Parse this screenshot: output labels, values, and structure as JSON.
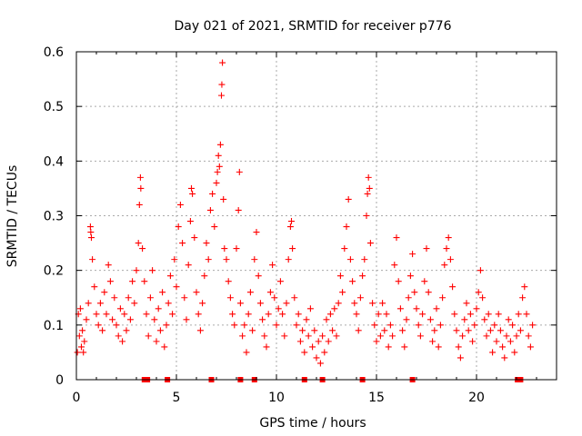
{
  "chart_data": {
    "type": "scatter",
    "title": "Day 021 of 2021, SRMTID for receiver p776",
    "xlabel": "GPS time / hours",
    "ylabel": "SRMTID / TECUs",
    "xlim": [
      0,
      24
    ],
    "ylim": [
      0,
      0.6
    ],
    "x_ticks": [
      0,
      5,
      10,
      15,
      20
    ],
    "x_tick_labels": [
      "0",
      "5",
      "10",
      "15",
      "20"
    ],
    "y_ticks": [
      0,
      0.1,
      0.2,
      0.3,
      0.4,
      0.5,
      0.6
    ],
    "y_tick_labels": [
      "0",
      "0.1",
      "0.2",
      "0.3",
      "0.4",
      "0.5",
      "0.6"
    ],
    "grid": true,
    "marker": "plus",
    "color": "#ff0000",
    "series": [
      {
        "name": "SRMTID",
        "points": [
          [
            0.05,
            0.05
          ],
          [
            0.1,
            0.12
          ],
          [
            0.15,
            0.08
          ],
          [
            0.2,
            0.13
          ],
          [
            0.25,
            0.06
          ],
          [
            0.3,
            0.09
          ],
          [
            0.35,
            0.05
          ],
          [
            0.4,
            0.07
          ],
          [
            0.5,
            0.11
          ],
          [
            0.6,
            0.14
          ],
          [
            0.7,
            0.28
          ],
          [
            0.72,
            0.27
          ],
          [
            0.75,
            0.26
          ],
          [
            0.8,
            0.22
          ],
          [
            0.9,
            0.17
          ],
          [
            1.0,
            0.12
          ],
          [
            1.1,
            0.1
          ],
          [
            1.2,
            0.14
          ],
          [
            1.3,
            0.09
          ],
          [
            1.4,
            0.16
          ],
          [
            1.5,
            0.12
          ],
          [
            1.6,
            0.21
          ],
          [
            1.7,
            0.18
          ],
          [
            1.8,
            0.11
          ],
          [
            1.9,
            0.15
          ],
          [
            2.0,
            0.1
          ],
          [
            2.1,
            0.08
          ],
          [
            2.2,
            0.13
          ],
          [
            2.3,
            0.07
          ],
          [
            2.4,
            0.12
          ],
          [
            2.5,
            0.09
          ],
          [
            2.6,
            0.15
          ],
          [
            2.7,
            0.11
          ],
          [
            2.8,
            0.18
          ],
          [
            2.9,
            0.14
          ],
          [
            3.0,
            0.2
          ],
          [
            3.1,
            0.25
          ],
          [
            3.15,
            0.32
          ],
          [
            3.2,
            0.37
          ],
          [
            3.22,
            0.35
          ],
          [
            3.3,
            0.24
          ],
          [
            3.4,
            0.18
          ],
          [
            3.5,
            0.12
          ],
          [
            3.6,
            0.08
          ],
          [
            3.7,
            0.15
          ],
          [
            3.8,
            0.2
          ],
          [
            3.9,
            0.11
          ],
          [
            4.0,
            0.07
          ],
          [
            4.1,
            0.13
          ],
          [
            4.2,
            0.09
          ],
          [
            4.3,
            0.16
          ],
          [
            4.4,
            0.06
          ],
          [
            4.5,
            0.1
          ],
          [
            4.6,
            0.14
          ],
          [
            4.7,
            0.19
          ],
          [
            4.8,
            0.12
          ],
          [
            4.9,
            0.22
          ],
          [
            5.0,
            0.17
          ],
          [
            5.1,
            0.28
          ],
          [
            5.2,
            0.32
          ],
          [
            5.3,
            0.25
          ],
          [
            5.4,
            0.15
          ],
          [
            5.5,
            0.11
          ],
          [
            5.6,
            0.21
          ],
          [
            5.7,
            0.29
          ],
          [
            5.75,
            0.35
          ],
          [
            5.8,
            0.34
          ],
          [
            5.9,
            0.26
          ],
          [
            6.0,
            0.16
          ],
          [
            6.1,
            0.12
          ],
          [
            6.2,
            0.09
          ],
          [
            6.3,
            0.14
          ],
          [
            6.4,
            0.19
          ],
          [
            6.5,
            0.25
          ],
          [
            6.6,
            0.22
          ],
          [
            6.7,
            0.31
          ],
          [
            6.8,
            0.34
          ],
          [
            6.9,
            0.28
          ],
          [
            7.0,
            0.36
          ],
          [
            7.05,
            0.38
          ],
          [
            7.1,
            0.41
          ],
          [
            7.15,
            0.39
          ],
          [
            7.2,
            0.43
          ],
          [
            7.25,
            0.52
          ],
          [
            7.27,
            0.54
          ],
          [
            7.3,
            0.58
          ],
          [
            7.35,
            0.33
          ],
          [
            7.4,
            0.24
          ],
          [
            7.5,
            0.22
          ],
          [
            7.6,
            0.18
          ],
          [
            7.7,
            0.15
          ],
          [
            7.8,
            0.12
          ],
          [
            7.9,
            0.1
          ],
          [
            8.0,
            0.24
          ],
          [
            8.1,
            0.31
          ],
          [
            8.15,
            0.38
          ],
          [
            8.2,
            0.14
          ],
          [
            8.3,
            0.08
          ],
          [
            8.4,
            0.1
          ],
          [
            8.5,
            0.05
          ],
          [
            8.6,
            0.12
          ],
          [
            8.7,
            0.16
          ],
          [
            8.8,
            0.09
          ],
          [
            8.9,
            0.22
          ],
          [
            9.0,
            0.27
          ],
          [
            9.1,
            0.19
          ],
          [
            9.2,
            0.14
          ],
          [
            9.3,
            0.11
          ],
          [
            9.4,
            0.08
          ],
          [
            9.5,
            0.06
          ],
          [
            9.6,
            0.12
          ],
          [
            9.7,
            0.16
          ],
          [
            9.8,
            0.21
          ],
          [
            9.9,
            0.15
          ],
          [
            10.0,
            0.1
          ],
          [
            10.1,
            0.13
          ],
          [
            10.2,
            0.18
          ],
          [
            10.3,
            0.12
          ],
          [
            10.4,
            0.08
          ],
          [
            10.5,
            0.14
          ],
          [
            10.6,
            0.22
          ],
          [
            10.7,
            0.28
          ],
          [
            10.75,
            0.29
          ],
          [
            10.8,
            0.24
          ],
          [
            10.9,
            0.15
          ],
          [
            11.0,
            0.1
          ],
          [
            11.1,
            0.12
          ],
          [
            11.2,
            0.07
          ],
          [
            11.3,
            0.09
          ],
          [
            11.4,
            0.05
          ],
          [
            11.5,
            0.11
          ],
          [
            11.6,
            0.08
          ],
          [
            11.7,
            0.13
          ],
          [
            11.8,
            0.06
          ],
          [
            11.9,
            0.09
          ],
          [
            12.0,
            0.04
          ],
          [
            12.1,
            0.07
          ],
          [
            12.2,
            0.03
          ],
          [
            12.3,
            0.08
          ],
          [
            12.4,
            0.05
          ],
          [
            12.5,
            0.11
          ],
          [
            12.6,
            0.07
          ],
          [
            12.7,
            0.12
          ],
          [
            12.8,
            0.09
          ],
          [
            12.9,
            0.13
          ],
          [
            13.0,
            0.08
          ],
          [
            13.1,
            0.14
          ],
          [
            13.2,
            0.19
          ],
          [
            13.3,
            0.16
          ],
          [
            13.4,
            0.24
          ],
          [
            13.5,
            0.28
          ],
          [
            13.6,
            0.33
          ],
          [
            13.7,
            0.22
          ],
          [
            13.8,
            0.18
          ],
          [
            13.9,
            0.14
          ],
          [
            14.0,
            0.12
          ],
          [
            14.1,
            0.09
          ],
          [
            14.2,
            0.15
          ],
          [
            14.3,
            0.19
          ],
          [
            14.4,
            0.22
          ],
          [
            14.5,
            0.3
          ],
          [
            14.55,
            0.34
          ],
          [
            14.6,
            0.37
          ],
          [
            14.65,
            0.35
          ],
          [
            14.7,
            0.25
          ],
          [
            14.8,
            0.14
          ],
          [
            14.9,
            0.1
          ],
          [
            15.0,
            0.07
          ],
          [
            15.1,
            0.12
          ],
          [
            15.2,
            0.08
          ],
          [
            15.3,
            0.14
          ],
          [
            15.4,
            0.09
          ],
          [
            15.5,
            0.12
          ],
          [
            15.6,
            0.06
          ],
          [
            15.7,
            0.1
          ],
          [
            15.8,
            0.08
          ],
          [
            15.9,
            0.21
          ],
          [
            16.0,
            0.26
          ],
          [
            16.1,
            0.18
          ],
          [
            16.2,
            0.13
          ],
          [
            16.3,
            0.09
          ],
          [
            16.4,
            0.06
          ],
          [
            16.5,
            0.11
          ],
          [
            16.6,
            0.15
          ],
          [
            16.7,
            0.19
          ],
          [
            16.8,
            0.23
          ],
          [
            16.9,
            0.16
          ],
          [
            17.0,
            0.13
          ],
          [
            17.1,
            0.1
          ],
          [
            17.2,
            0.08
          ],
          [
            17.3,
            0.12
          ],
          [
            17.4,
            0.18
          ],
          [
            17.5,
            0.24
          ],
          [
            17.6,
            0.16
          ],
          [
            17.7,
            0.11
          ],
          [
            17.8,
            0.07
          ],
          [
            17.9,
            0.09
          ],
          [
            18.0,
            0.13
          ],
          [
            18.1,
            0.06
          ],
          [
            18.2,
            0.1
          ],
          [
            18.3,
            0.15
          ],
          [
            18.4,
            0.21
          ],
          [
            18.5,
            0.24
          ],
          [
            18.6,
            0.26
          ],
          [
            18.7,
            0.22
          ],
          [
            18.8,
            0.17
          ],
          [
            18.9,
            0.12
          ],
          [
            19.0,
            0.09
          ],
          [
            19.1,
            0.06
          ],
          [
            19.2,
            0.04
          ],
          [
            19.3,
            0.08
          ],
          [
            19.4,
            0.11
          ],
          [
            19.5,
            0.14
          ],
          [
            19.6,
            0.09
          ],
          [
            19.7,
            0.12
          ],
          [
            19.8,
            0.07
          ],
          [
            19.9,
            0.1
          ],
          [
            20.0,
            0.13
          ],
          [
            20.1,
            0.16
          ],
          [
            20.2,
            0.2
          ],
          [
            20.3,
            0.15
          ],
          [
            20.4,
            0.11
          ],
          [
            20.5,
            0.08
          ],
          [
            20.6,
            0.12
          ],
          [
            20.7,
            0.09
          ],
          [
            20.8,
            0.05
          ],
          [
            20.9,
            0.1
          ],
          [
            21.0,
            0.07
          ],
          [
            21.1,
            0.12
          ],
          [
            21.2,
            0.09
          ],
          [
            21.3,
            0.06
          ],
          [
            21.4,
            0.04
          ],
          [
            21.5,
            0.08
          ],
          [
            21.6,
            0.11
          ],
          [
            21.7,
            0.07
          ],
          [
            21.8,
            0.1
          ],
          [
            21.9,
            0.05
          ],
          [
            22.0,
            0.08
          ],
          [
            22.1,
            0.12
          ],
          [
            22.2,
            0.09
          ],
          [
            22.3,
            0.15
          ],
          [
            22.4,
            0.17
          ],
          [
            22.5,
            0.12
          ],
          [
            22.6,
            0.08
          ],
          [
            22.7,
            0.06
          ],
          [
            22.8,
            0.1
          ]
        ]
      }
    ],
    "gap_markers_x": [
      3.4,
      3.55,
      4.55,
      6.75,
      8.2,
      8.9,
      11.4,
      12.3,
      14.3,
      16.8,
      22.05,
      22.2
    ]
  }
}
